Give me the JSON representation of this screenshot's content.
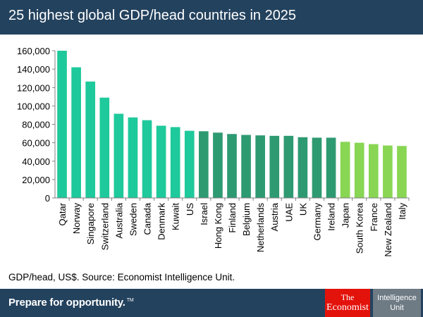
{
  "header": {
    "title": "25 highest global GDP/head countries in 2025"
  },
  "chart_data": {
    "type": "bar",
    "categories": [
      "Qatar",
      "Norway",
      "Singapore",
      "Switzerland",
      "Australia",
      "Sweden",
      "Canada",
      "Denmark",
      "Kuwait",
      "US",
      "Israel",
      "Hong Kong",
      "Finland",
      "Belgium",
      "Netherlands",
      "Austria",
      "UAE",
      "UK",
      "Germany",
      "Ireland",
      "Japan",
      "South Korea",
      "France",
      "New Zealand",
      "Italy"
    ],
    "values": [
      160000,
      142000,
      126500,
      109000,
      91500,
      87500,
      84500,
      78500,
      77000,
      73000,
      72500,
      71000,
      69500,
      68500,
      68000,
      67500,
      67500,
      66000,
      65500,
      65500,
      61000,
      60000,
      58500,
      57000,
      56500
    ],
    "ylim": [
      0,
      160000
    ],
    "yticks": [
      0,
      20000,
      40000,
      60000,
      80000,
      100000,
      120000,
      140000,
      160000
    ],
    "ytick_labels": [
      "0",
      "20,000",
      "40,000",
      "60,000",
      "80,000",
      "100,000",
      "120,000",
      "140,000",
      "160,000"
    ],
    "bar_colors": [
      "#1ec99b",
      "#1ec99b",
      "#1ec99b",
      "#1ec99b",
      "#1ec99b",
      "#1ec99b",
      "#1ec99b",
      "#1ec99b",
      "#1ec99b",
      "#1ec99b",
      "#2e9a72",
      "#2e9a72",
      "#2e9a72",
      "#2e9a72",
      "#2e9a72",
      "#2e9a72",
      "#2e9a72",
      "#2e9a72",
      "#2e9a72",
      "#2e9a72",
      "#88d654",
      "#88d654",
      "#88d654",
      "#88d654",
      "#88d654"
    ],
    "grid": false,
    "legend": "none"
  },
  "note": {
    "source": "GDP/head, US$. Source: Economist Intelligence Unit."
  },
  "footer": {
    "tagline": "Prepare for opportunity.",
    "tagline_mark": "TM",
    "logo_economist_line1": "The",
    "logo_economist_line2": "Economist",
    "logo_eiu_line1": "Intelligence",
    "logo_eiu_line2": "Unit",
    "colors": {
      "bar": "#23425e",
      "economist": "#e3120b",
      "eiu": "#6e7b85"
    }
  }
}
